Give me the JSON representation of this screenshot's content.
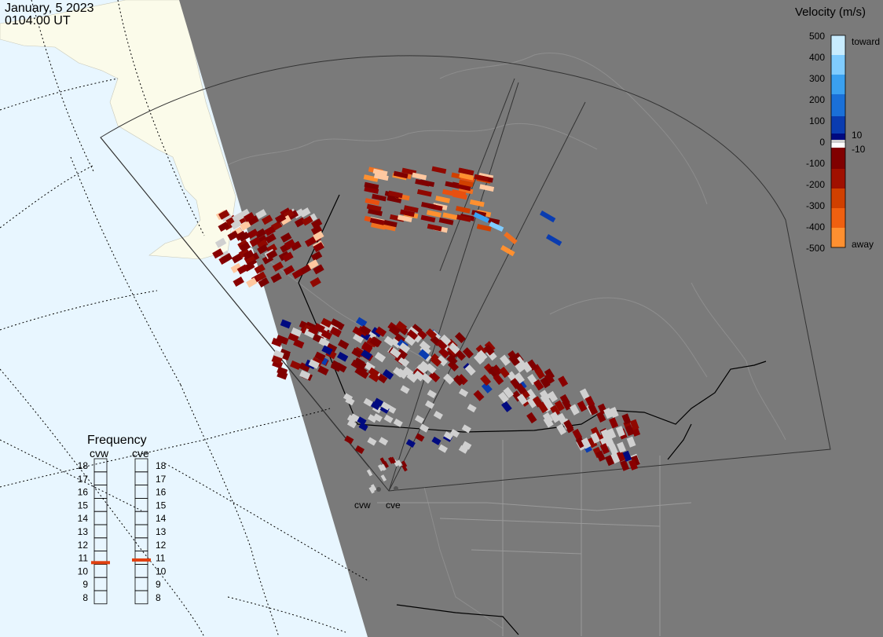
{
  "header": {
    "date": "January, 5 2023",
    "time": "0104:00 UT"
  },
  "colorbar": {
    "title": "Velocity (m/s)",
    "ticks": [
      "500",
      "400",
      "300",
      "200",
      "100",
      "0",
      "-100",
      "-200",
      "-300",
      "-400",
      "-500"
    ],
    "label_toward": "toward",
    "label_away": "away",
    "label_pos_threshold": "10",
    "label_neg_threshold": "-10"
  },
  "frequency_panel": {
    "title": "Frequency",
    "radars": [
      {
        "name": "cvw",
        "value_mhz": 10.6
      },
      {
        "name": "cve",
        "value_mhz": 10.8
      }
    ],
    "scale": [
      "18",
      "17",
      "16",
      "15",
      "14",
      "13",
      "12",
      "11",
      "10",
      "9",
      "8"
    ]
  },
  "radar_sites": [
    {
      "label": "cvw"
    },
    {
      "label": "cve"
    }
  ],
  "colors": {
    "ocean": "#e8f6ff",
    "land_day": "#fbfbea",
    "night": "#7a7a7a",
    "gridline": "#000000",
    "ground_scatter": "#d0d0d0",
    "freq_marker": "#e04010"
  }
}
